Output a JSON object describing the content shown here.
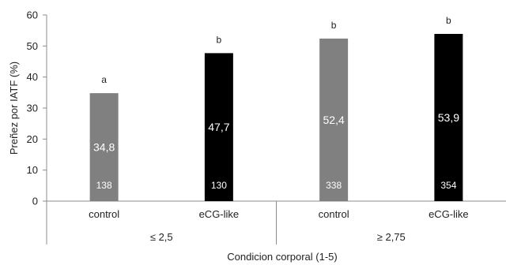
{
  "chart_data": {
    "type": "bar",
    "title": "",
    "xlabel": "Condicion corporal (1-5)",
    "ylabel": "Preñez por IATF (%)",
    "ylim": [
      0,
      60
    ],
    "yticks": [
      0,
      10,
      20,
      30,
      40,
      50,
      60
    ],
    "grid": false,
    "legend": "none",
    "groups": [
      {
        "label": "≤  2,5",
        "bars": [
          {
            "category": "control",
            "value": 34.8,
            "value_label": "34,8",
            "n_label": "138",
            "significance": "a",
            "color": "#808080"
          },
          {
            "category": "eCG-like",
            "value": 47.7,
            "value_label": "47,7",
            "n_label": "130",
            "significance": "b",
            "color": "#000000"
          }
        ]
      },
      {
        "label": "≥ 2,75",
        "bars": [
          {
            "category": "control",
            "value": 52.4,
            "value_label": "52,4",
            "n_label": "338",
            "significance": "b",
            "color": "#808080"
          },
          {
            "category": "eCG-like",
            "value": 53.9,
            "value_label": "53,9",
            "n_label": "354",
            "significance": "b",
            "color": "#000000"
          }
        ]
      }
    ]
  }
}
